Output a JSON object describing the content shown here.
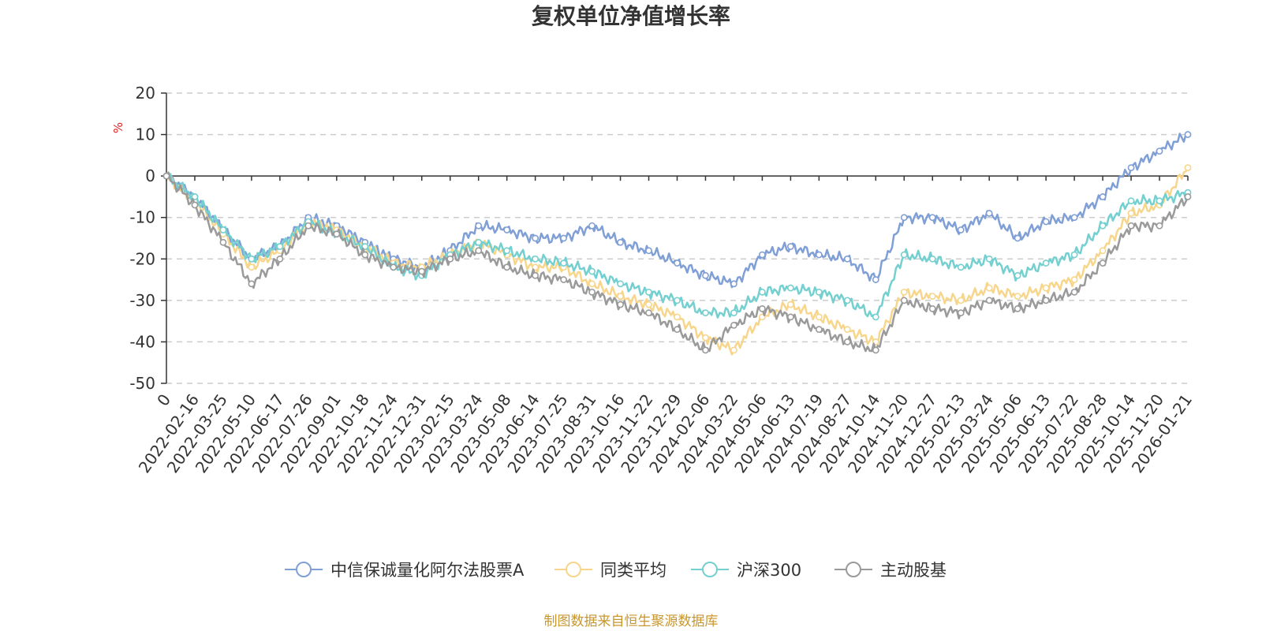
{
  "chart_data": {
    "type": "line",
    "title": "复权单位净值增长率",
    "ylabel": "%",
    "ylim": [
      -50,
      20
    ],
    "yticks": [
      20,
      10,
      0,
      -10,
      -20,
      -30,
      -40,
      -50
    ],
    "x_tick_labels": [
      "0",
      "2022-02-16",
      "2022-03-25",
      "2022-05-10",
      "2022-06-17",
      "2022-07-26",
      "2022-09-01",
      "2022-10-18",
      "2022-11-24",
      "2022-12-31",
      "2023-02-15",
      "2023-03-24",
      "2023-05-08",
      "2023-06-14",
      "2023-07-25",
      "2023-08-31",
      "2023-10-16",
      "2023-11-22",
      "2023-12-29",
      "2024-02-06",
      "2024-03-22",
      "2024-05-06",
      "2024-06-13",
      "2024-07-19",
      "2024-08-27",
      "2024-10-14",
      "2024-11-20",
      "2024-12-27",
      "2025-02-13",
      "2025-03-24",
      "2025-05-06",
      "2025-06-13",
      "2025-07-22",
      "2025-08-28",
      "2025-10-14",
      "2025-11-20",
      "2026-01-21"
    ],
    "grid": "dashed horizontal",
    "legend_position": "bottom",
    "series": [
      {
        "name": "中信保诚量化阿尔法股票A",
        "color": "#7f9fd6",
        "values": [
          0,
          -5,
          -13,
          -20,
          -17,
          -10,
          -12,
          -16,
          -20,
          -22,
          -18,
          -12,
          -13,
          -15,
          -15,
          -12,
          -16,
          -18,
          -21,
          -24,
          -26,
          -19,
          -17,
          -19,
          -20,
          -25,
          -10,
          -10,
          -13,
          -9,
          -15,
          -11,
          -10,
          -5,
          2,
          6,
          10
        ]
      },
      {
        "name": "同类平均",
        "color": "#f7d68c",
        "values": [
          0,
          -6,
          -14,
          -22,
          -18,
          -11,
          -13,
          -17,
          -21,
          -22,
          -19,
          -16,
          -19,
          -22,
          -22,
          -26,
          -29,
          -31,
          -34,
          -39,
          -42,
          -34,
          -31,
          -34,
          -37,
          -40,
          -28,
          -29,
          -30,
          -27,
          -29,
          -27,
          -25,
          -18,
          -9,
          -7,
          2
        ]
      },
      {
        "name": "沪深300",
        "color": "#74d0d0",
        "values": [
          0,
          -5,
          -13,
          -20,
          -17,
          -11,
          -14,
          -17,
          -22,
          -24,
          -19,
          -16,
          -18,
          -20,
          -21,
          -23,
          -26,
          -28,
          -30,
          -33,
          -33,
          -28,
          -27,
          -28,
          -30,
          -34,
          -19,
          -20,
          -22,
          -20,
          -24,
          -21,
          -19,
          -12,
          -6,
          -6,
          -4
        ]
      },
      {
        "name": "主动股基",
        "color": "#9a9a9a",
        "values": [
          0,
          -7,
          -16,
          -26,
          -20,
          -12,
          -14,
          -19,
          -22,
          -23,
          -20,
          -18,
          -22,
          -24,
          -25,
          -28,
          -31,
          -33,
          -37,
          -42,
          -36,
          -32,
          -34,
          -37,
          -40,
          -42,
          -30,
          -32,
          -33,
          -30,
          -32,
          -30,
          -28,
          -21,
          -12,
          -12,
          -5
        ]
      }
    ]
  },
  "source_note": "制图数据来自恒生聚源数据库"
}
